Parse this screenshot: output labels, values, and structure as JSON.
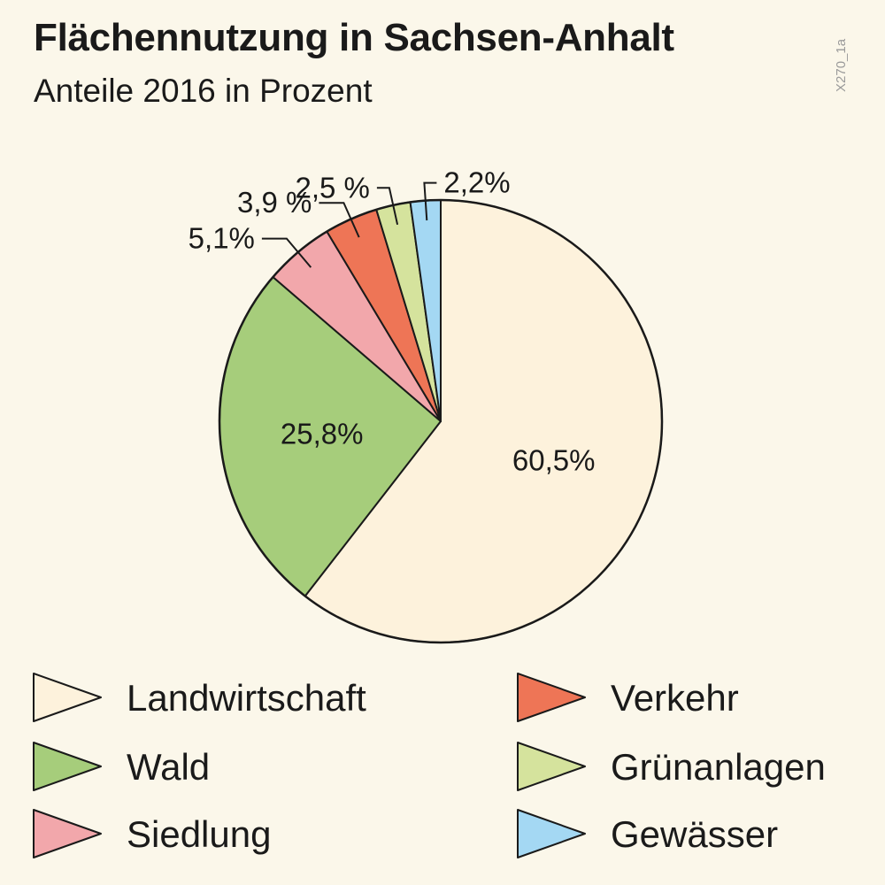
{
  "chart_data": {
    "type": "pie",
    "title": "Flächennutzung in Sachsen-Anhalt",
    "subtitle": "Anteile 2016 in Prozent",
    "source_code": "X270_1a",
    "slices": [
      {
        "name": "Landwirtschaft",
        "value": 60.5,
        "label": "60,5%",
        "color": "#fdf2dc"
      },
      {
        "name": "Wald",
        "value": 25.8,
        "label": "25,8%",
        "color": "#a6cd7b"
      },
      {
        "name": "Siedlung",
        "value": 5.1,
        "label": "5,1%",
        "color": "#f2a7ab"
      },
      {
        "name": "Verkehr",
        "value": 3.9,
        "label": "3,9 %",
        "color": "#ee7556"
      },
      {
        "name": "Grünanlagen",
        "value": 2.5,
        "label": "2,5 %",
        "color": "#d5e39d"
      },
      {
        "name": "Gewässer",
        "value": 2.2,
        "label": "2,2%",
        "color": "#a4d8f3"
      }
    ],
    "legend": {
      "placement": "bottom",
      "columns": 2,
      "order": [
        "Landwirtschaft",
        "Wald",
        "Siedlung",
        "Verkehr",
        "Grünanlagen",
        "Gewässer"
      ]
    },
    "outline_color": "#1a1a1a"
  }
}
